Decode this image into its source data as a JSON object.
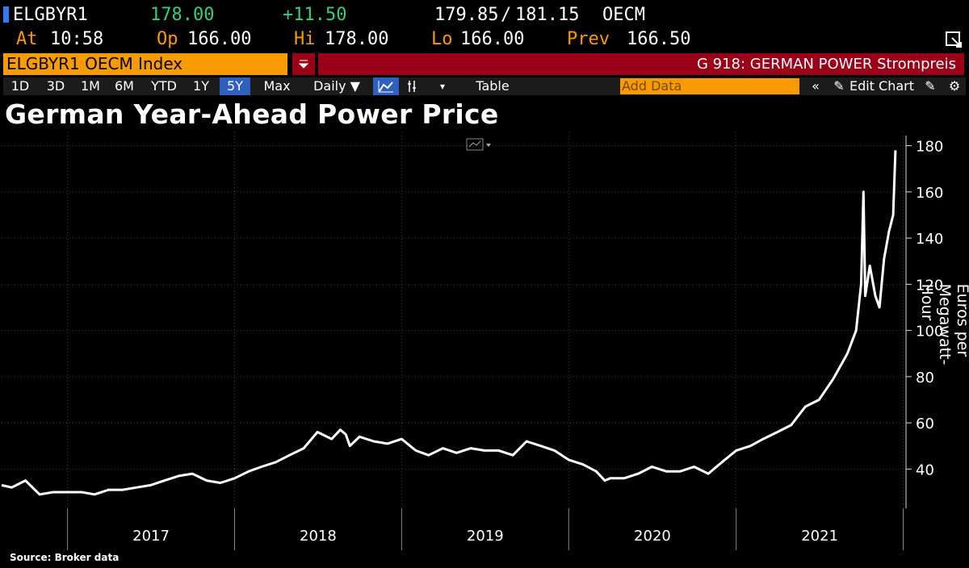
{
  "quote": {
    "ticker": "ELGBYR1",
    "last": "178.00",
    "change": "+11.50",
    "bid_ask_low": "179.85",
    "bid_ask_sep": "/",
    "bid_ask_high": "181.15",
    "source": "OECM",
    "at_label": "At",
    "at_value": "10:58",
    "open_label": "Op",
    "open_value": "166.00",
    "high_label": "Hi",
    "high_value": "178.00",
    "low_label": "Lo",
    "low_value": "166.00",
    "prev_label": "Prev",
    "prev_value": "166.50"
  },
  "security_bar": {
    "security": "ELGBYR1 OECM Index",
    "dropdown_icon": "filter-dropdown-icon",
    "page_title": "G 918: GERMAN POWER Strompreis"
  },
  "toolbar": {
    "ranges": [
      "1D",
      "3D",
      "1M",
      "6M",
      "YTD",
      "1Y",
      "5Y",
      "Max"
    ],
    "selected_range": "5Y",
    "frequency": "Daily ▼",
    "table_label": "Table",
    "add_data_placeholder": "Add Data",
    "edit_chart_label": "Edit Chart",
    "colors": {
      "amber": "#f89b00",
      "red": "#9b0018",
      "blue": "#2f5fbf",
      "green": "#33d17a"
    }
  },
  "chart_data": {
    "type": "line",
    "title": "German Year-Ahead Power Price",
    "ylabel": "Euros per Megawatt-Hour",
    "xlabel": "",
    "source_note": "Source: Broker data",
    "ylim": [
      23,
      183
    ],
    "yticks": [
      40,
      60,
      80,
      100,
      120,
      140,
      160,
      180
    ],
    "x_tick_labels": [
      "2017",
      "2018",
      "2019",
      "2020",
      "2021"
    ],
    "grid": true,
    "series": [
      {
        "color": "#ffffff",
        "x": [
          "2016-08-10",
          "2016-09-01",
          "2016-10-01",
          "2016-11-01",
          "2016-12-01",
          "2017-01-01",
          "2017-02-01",
          "2017-03-01",
          "2017-04-01",
          "2017-05-01",
          "2017-06-01",
          "2017-07-01",
          "2017-08-01",
          "2017-09-01",
          "2017-10-01",
          "2017-11-01",
          "2017-12-01",
          "2018-01-01",
          "2018-02-01",
          "2018-03-01",
          "2018-04-01",
          "2018-05-01",
          "2018-06-01",
          "2018-07-01",
          "2018-08-01",
          "2018-08-20",
          "2018-09-01",
          "2018-09-10",
          "2018-10-01",
          "2018-11-01",
          "2018-12-01",
          "2019-01-01",
          "2019-02-01",
          "2019-03-01",
          "2019-04-01",
          "2019-05-01",
          "2019-06-01",
          "2019-07-01",
          "2019-08-01",
          "2019-09-01",
          "2019-10-01",
          "2019-11-01",
          "2019-12-01",
          "2020-01-01",
          "2020-02-01",
          "2020-03-01",
          "2020-03-20",
          "2020-04-01",
          "2020-05-01",
          "2020-06-01",
          "2020-07-01",
          "2020-08-01",
          "2020-09-01",
          "2020-10-01",
          "2020-11-01",
          "2020-12-01",
          "2021-01-01",
          "2021-02-01",
          "2021-03-01",
          "2021-04-01",
          "2021-05-01",
          "2021-06-01",
          "2021-07-01",
          "2021-08-01",
          "2021-09-01",
          "2021-09-20",
          "2021-10-01",
          "2021-10-06",
          "2021-10-10",
          "2021-10-20",
          "2021-11-01",
          "2021-11-10",
          "2021-11-20",
          "2021-12-01",
          "2021-12-10",
          "2021-12-15"
        ],
        "values": [
          33,
          32,
          35,
          29,
          30,
          30,
          30,
          29,
          31,
          31,
          32,
          33,
          35,
          37,
          38,
          35,
          34,
          36,
          39,
          41,
          43,
          46,
          49,
          56,
          53,
          57,
          55,
          50,
          54,
          52,
          51,
          53,
          48,
          46,
          49,
          47,
          49,
          48,
          48,
          46,
          52,
          50,
          48,
          44,
          42,
          39,
          35,
          36,
          36,
          38,
          41,
          39,
          39,
          41,
          38,
          43,
          48,
          50,
          53,
          56,
          59,
          67,
          70,
          79,
          90,
          100,
          120,
          160,
          115,
          128,
          115,
          110,
          131,
          143,
          150,
          178
        ]
      }
    ]
  }
}
